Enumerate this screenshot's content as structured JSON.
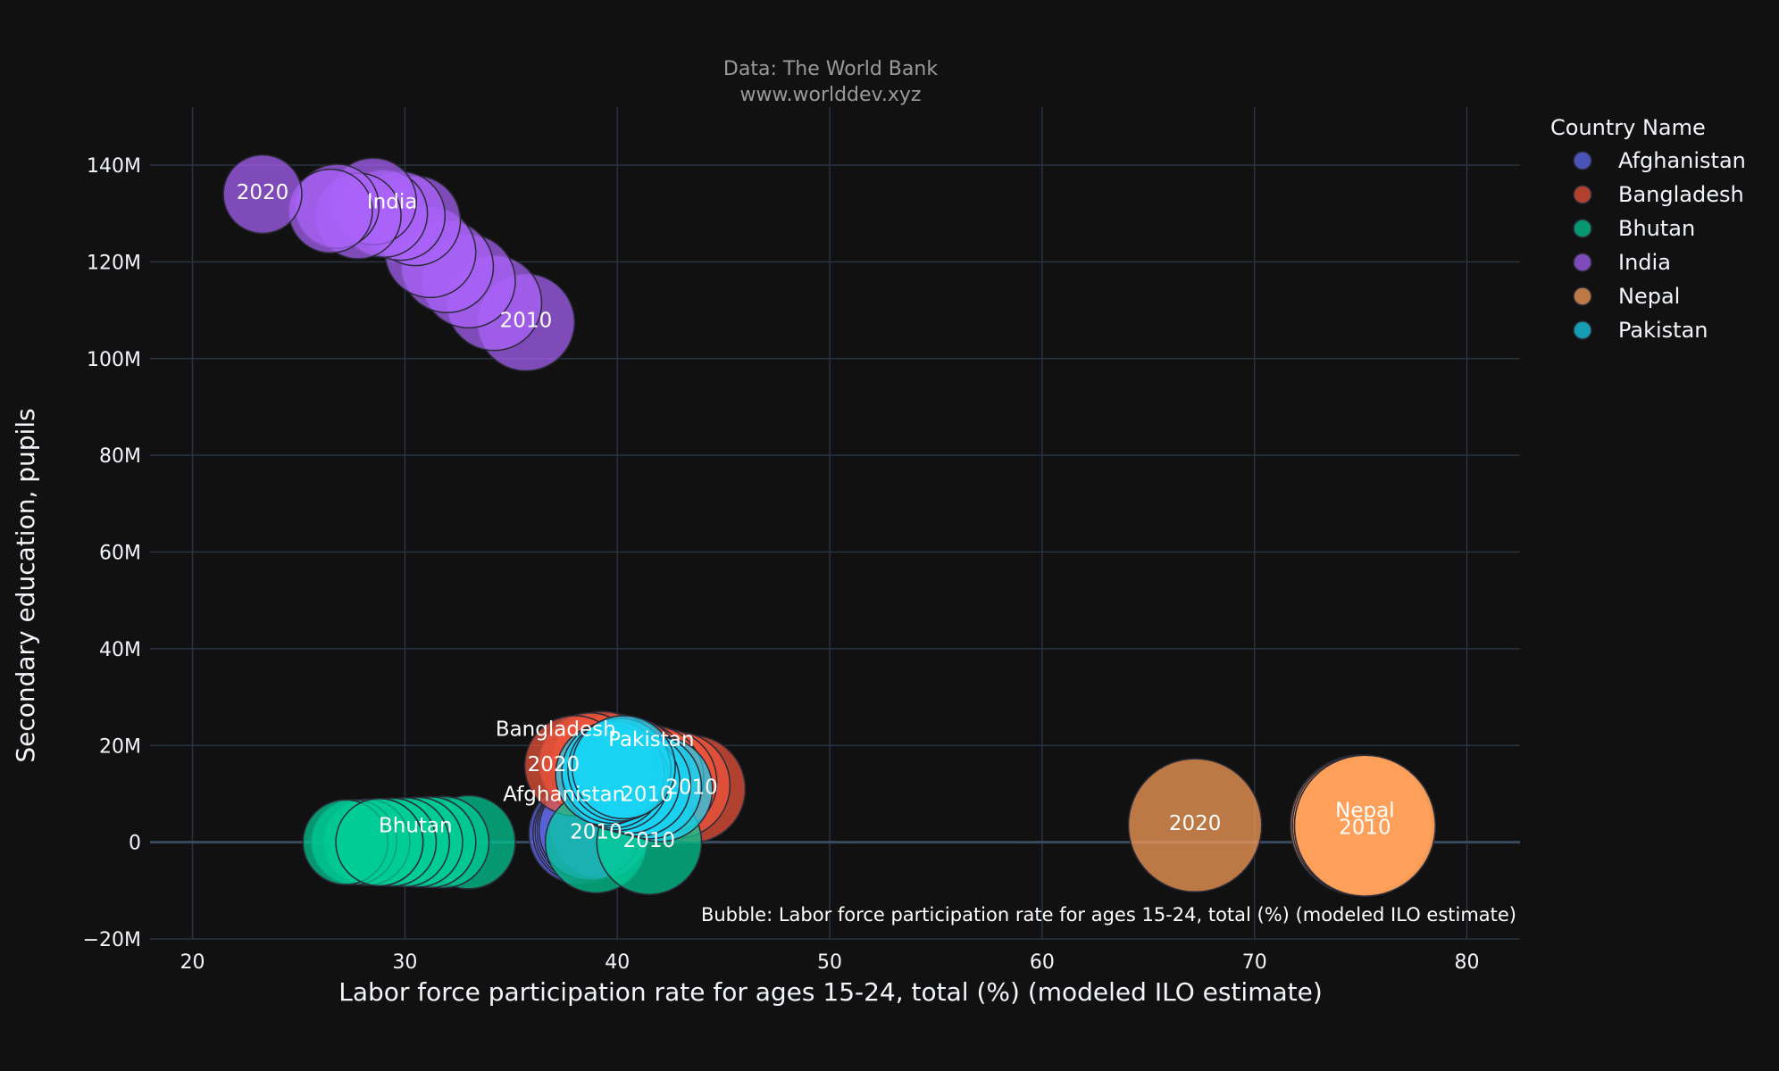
{
  "source_line1": "Data: The World Bank",
  "source_line2": "www.worlddev.xyz",
  "bubble_note": "Bubble: Labor force participation rate for ages 15-24, total (%) (modeled ILO estimate)",
  "legend_title": "Country Name",
  "colors": {
    "background": "#111111",
    "grid": "#283442",
    "zeroline": "#3a4a5e",
    "Afghanistan": "#636efa",
    "Bangladesh": "#EF553B",
    "Bhutan": "#00cc96",
    "India": "#ab63fa",
    "Nepal": "#FFA15A",
    "Pakistan": "#19d3f3"
  },
  "chart_data": {
    "type": "scatter",
    "xlabel": "Labor force participation rate for ages 15-24, total (%) (modeled ILO estimate)",
    "ylabel": "Secondary education, pupils",
    "xlim": [
      18,
      82.5
    ],
    "ylim": [
      -20000000,
      152000000
    ],
    "x_ticks": [
      20,
      30,
      40,
      50,
      60,
      70,
      80
    ],
    "y_ticks": [
      -20000000,
      0,
      20000000,
      40000000,
      60000000,
      80000000,
      100000000,
      120000000,
      140000000
    ],
    "y_tick_labels": [
      "−20M",
      "0",
      "20M",
      "40M",
      "60M",
      "80M",
      "100M",
      "120M",
      "140M"
    ],
    "grid": true,
    "legend_position": "top-right",
    "size_variable": "Labor force participation rate for ages 15-24, total (%) (modeled ILO estimate)",
    "series": [
      {
        "name": "Afghanistan",
        "points": [
          {
            "x": 38.2,
            "y": 1800000
          },
          {
            "x": 38.4,
            "y": 2000000
          },
          {
            "x": 38.5,
            "y": 2200000
          },
          {
            "x": 38.6,
            "y": 2400000
          },
          {
            "x": 38.7,
            "y": 2500000
          },
          {
            "x": 38.8,
            "y": 2700000
          },
          {
            "x": 38.9,
            "y": 2800000
          },
          {
            "x": 39.0,
            "y": 2900000
          },
          {
            "x": 39.1,
            "y": 3000000
          },
          {
            "x": 39.2,
            "y": 3000000
          },
          {
            "x": 38.7,
            "y": 2600000
          }
        ],
        "labels": [
          {
            "text": "Afghanistan",
            "x": 37.5,
            "y": 10000000
          }
        ]
      },
      {
        "name": "Bangladesh",
        "points": [
          {
            "x": 43.5,
            "y": 11000000
          },
          {
            "x": 42.8,
            "y": 11800000
          },
          {
            "x": 42.2,
            "y": 12500000
          },
          {
            "x": 41.6,
            "y": 13300000
          },
          {
            "x": 41.0,
            "y": 14000000
          },
          {
            "x": 40.6,
            "y": 15000000
          },
          {
            "x": 40.2,
            "y": 15500000
          },
          {
            "x": 39.8,
            "y": 16000000
          },
          {
            "x": 39.3,
            "y": 16500000
          },
          {
            "x": 38.7,
            "y": 16300000
          },
          {
            "x": 38.0,
            "y": 15800000
          }
        ],
        "labels": [
          {
            "text": "Bangladesh",
            "x": 37.1,
            "y": 23500000
          },
          {
            "text": "2020",
            "x": 37.0,
            "y": 16200000
          },
          {
            "text": "2010",
            "x": 43.5,
            "y": 11500000
          }
        ]
      },
      {
        "name": "Bhutan",
        "points": [
          {
            "x": 33.0,
            "y": 0
          },
          {
            "x": 31.8,
            "y": 0
          },
          {
            "x": 31.2,
            "y": 0
          },
          {
            "x": 30.6,
            "y": 0
          },
          {
            "x": 30.0,
            "y": 0
          },
          {
            "x": 29.4,
            "y": 0
          },
          {
            "x": 28.8,
            "y": 0
          },
          {
            "x": 28.2,
            "y": 0
          },
          {
            "x": 27.6,
            "y": 0
          },
          {
            "x": 27.2,
            "y": 0
          },
          {
            "x": 28.8,
            "y": 0
          },
          {
            "x": 39.0,
            "y": 0
          },
          {
            "x": 41.5,
            "y": 0
          }
        ],
        "labels": [
          {
            "text": "Bhutan",
            "x": 30.5,
            "y": 3500000
          },
          {
            "text": "2010",
            "x": 39.0,
            "y": 2200000
          },
          {
            "text": "2010",
            "x": 41.5,
            "y": 500000
          }
        ]
      },
      {
        "name": "India",
        "points": [
          {
            "x": 35.7,
            "y": 107500000
          },
          {
            "x": 34.2,
            "y": 111500000
          },
          {
            "x": 33.0,
            "y": 116000000
          },
          {
            "x": 32.0,
            "y": 119000000
          },
          {
            "x": 31.2,
            "y": 122000000
          },
          {
            "x": 30.5,
            "y": 128500000
          },
          {
            "x": 29.8,
            "y": 129500000
          },
          {
            "x": 29.0,
            "y": 130000000
          },
          {
            "x": 28.5,
            "y": 132500000
          },
          {
            "x": 27.8,
            "y": 129500000
          },
          {
            "x": 26.8,
            "y": 131500000
          },
          {
            "x": 26.5,
            "y": 130500000
          },
          {
            "x": 23.3,
            "y": 134000000
          }
        ],
        "labels": [
          {
            "text": "2020",
            "x": 23.3,
            "y": 134500000
          },
          {
            "text": "India",
            "x": 29.4,
            "y": 132500000
          },
          {
            "text": "2010",
            "x": 35.7,
            "y": 108000000
          }
        ]
      },
      {
        "name": "Nepal",
        "points": [
          {
            "x": 67.2,
            "y": 3500000
          },
          {
            "x": 75.0,
            "y": 3500000
          },
          {
            "x": 75.1,
            "y": 3500000
          },
          {
            "x": 75.2,
            "y": 3400000
          },
          {
            "x": 75.2,
            "y": 3400000
          }
        ],
        "labels": [
          {
            "text": "2020",
            "x": 67.2,
            "y": 4000000
          },
          {
            "text": "Nepal",
            "x": 75.2,
            "y": 6700000
          },
          {
            "text": "2010",
            "x": 75.2,
            "y": 3200000
          }
        ]
      },
      {
        "name": "Pakistan",
        "points": [
          {
            "x": 42.0,
            "y": 11000000
          },
          {
            "x": 41.5,
            "y": 11500000
          },
          {
            "x": 41.0,
            "y": 12000000
          },
          {
            "x": 40.5,
            "y": 12500000
          },
          {
            "x": 40.0,
            "y": 13000000
          },
          {
            "x": 39.8,
            "y": 13500000
          },
          {
            "x": 39.5,
            "y": 14000000
          },
          {
            "x": 39.8,
            "y": 14500000
          },
          {
            "x": 40.1,
            "y": 15000000
          },
          {
            "x": 40.3,
            "y": 15500000
          }
        ],
        "labels": [
          {
            "text": "Pakistan",
            "x": 41.6,
            "y": 21300000
          },
          {
            "text": "2010",
            "x": 41.4,
            "y": 10000000
          }
        ]
      }
    ]
  }
}
